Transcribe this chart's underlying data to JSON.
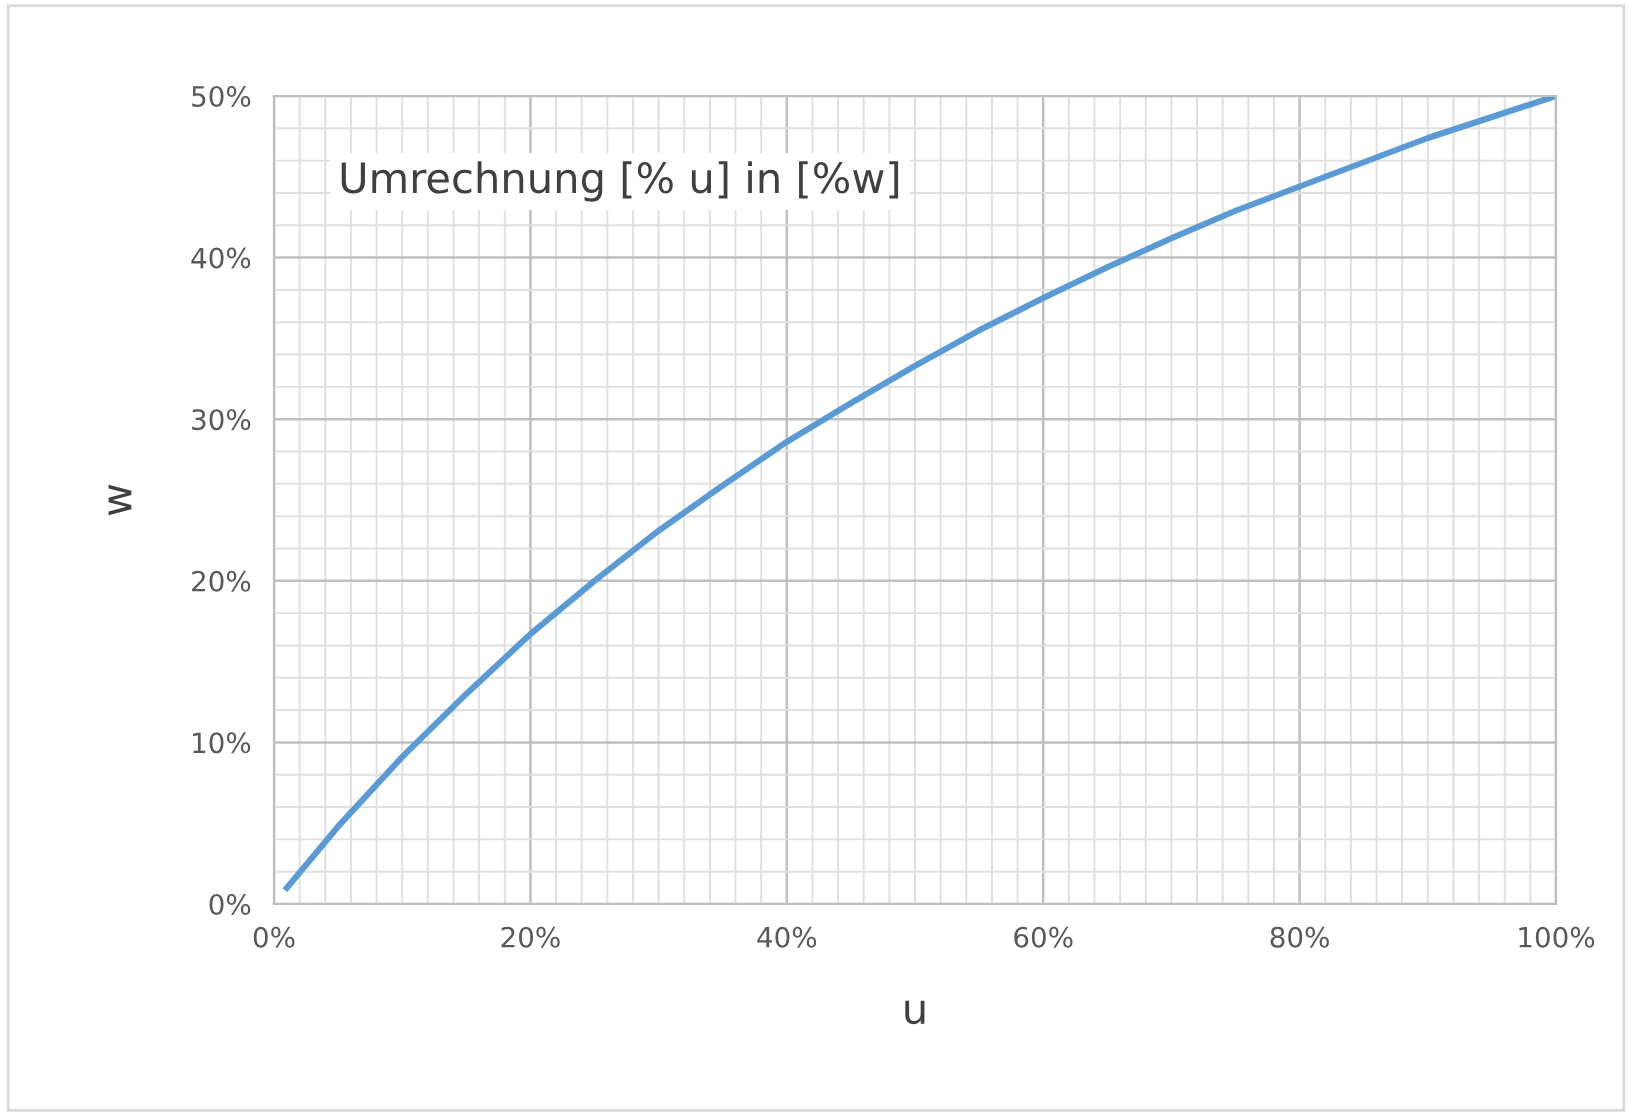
{
  "chart_data": {
    "type": "line",
    "title": "Umrechnung [% u] in [%w]",
    "xlabel": "u",
    "ylabel": "w",
    "x": [
      1,
      5,
      10,
      15,
      20,
      25,
      30,
      35,
      40,
      45,
      50,
      55,
      60,
      65,
      70,
      75,
      80,
      85,
      90,
      95,
      100
    ],
    "series": [
      {
        "color": "#5b9bd5",
        "values": [
          1.0,
          4.8,
          9.1,
          13.0,
          16.7,
          20.0,
          23.1,
          25.9,
          28.6,
          31.0,
          33.3,
          35.5,
          37.5,
          39.4,
          41.2,
          42.9,
          44.4,
          45.9,
          47.4,
          48.7,
          50.0
        ]
      }
    ],
    "xlim": [
      0,
      100
    ],
    "ylim": [
      0,
      50
    ],
    "xticks": [
      {
        "value": 0,
        "label": "0%"
      },
      {
        "value": 2,
        "label": null
      },
      {
        "value": 4,
        "label": null
      },
      {
        "value": 6,
        "label": null
      },
      {
        "value": 8,
        "label": null
      },
      {
        "value": 10,
        "label": null
      },
      {
        "value": 12,
        "label": null
      },
      {
        "value": 14,
        "label": null
      },
      {
        "value": 16,
        "label": null
      },
      {
        "value": 18,
        "label": null
      },
      {
        "value": 20,
        "label": "20%"
      },
      {
        "value": 22,
        "label": null
      },
      {
        "value": 24,
        "label": null
      },
      {
        "value": 26,
        "label": null
      },
      {
        "value": 28,
        "label": null
      },
      {
        "value": 30,
        "label": null
      },
      {
        "value": 32,
        "label": null
      },
      {
        "value": 34,
        "label": null
      },
      {
        "value": 36,
        "label": null
      },
      {
        "value": 38,
        "label": null
      },
      {
        "value": 40,
        "label": "40%"
      },
      {
        "value": 42,
        "label": null
      },
      {
        "value": 44,
        "label": null
      },
      {
        "value": 46,
        "label": null
      },
      {
        "value": 48,
        "label": null
      },
      {
        "value": 50,
        "label": null
      },
      {
        "value": 52,
        "label": null
      },
      {
        "value": 54,
        "label": null
      },
      {
        "value": 56,
        "label": null
      },
      {
        "value": 58,
        "label": null
      },
      {
        "value": 60,
        "label": "60%"
      },
      {
        "value": 62,
        "label": null
      },
      {
        "value": 64,
        "label": null
      },
      {
        "value": 66,
        "label": null
      },
      {
        "value": 68,
        "label": null
      },
      {
        "value": 70,
        "label": null
      },
      {
        "value": 72,
        "label": null
      },
      {
        "value": 74,
        "label": null
      },
      {
        "value": 76,
        "label": null
      },
      {
        "value": 78,
        "label": null
      },
      {
        "value": 80,
        "label": "80%"
      },
      {
        "value": 82,
        "label": null
      },
      {
        "value": 84,
        "label": null
      },
      {
        "value": 86,
        "label": null
      },
      {
        "value": 88,
        "label": null
      },
      {
        "value": 90,
        "label": null
      },
      {
        "value": 92,
        "label": null
      },
      {
        "value": 94,
        "label": null
      },
      {
        "value": 96,
        "label": null
      },
      {
        "value": 98,
        "label": null
      },
      {
        "value": 100,
        "label": "100%"
      }
    ],
    "yticks": [
      {
        "value": 0,
        "label": "0%"
      },
      {
        "value": 2,
        "label": null
      },
      {
        "value": 4,
        "label": null
      },
      {
        "value": 6,
        "label": null
      },
      {
        "value": 8,
        "label": null
      },
      {
        "value": 10,
        "label": "10%"
      },
      {
        "value": 12,
        "label": null
      },
      {
        "value": 14,
        "label": null
      },
      {
        "value": 16,
        "label": null
      },
      {
        "value": 18,
        "label": null
      },
      {
        "value": 20,
        "label": "20%"
      },
      {
        "value": 22,
        "label": null
      },
      {
        "value": 24,
        "label": null
      },
      {
        "value": 26,
        "label": null
      },
      {
        "value": 28,
        "label": null
      },
      {
        "value": 30,
        "label": "30%"
      },
      {
        "value": 32,
        "label": null
      },
      {
        "value": 34,
        "label": null
      },
      {
        "value": 36,
        "label": null
      },
      {
        "value": 38,
        "label": null
      },
      {
        "value": 40,
        "label": "40%"
      },
      {
        "value": 42,
        "label": null
      },
      {
        "value": 44,
        "label": null
      },
      {
        "value": 46,
        "label": null
      },
      {
        "value": 48,
        "label": null
      },
      {
        "value": 50,
        "label": "50%"
      }
    ],
    "grid": true,
    "marker": "none",
    "line_style": "solid"
  }
}
